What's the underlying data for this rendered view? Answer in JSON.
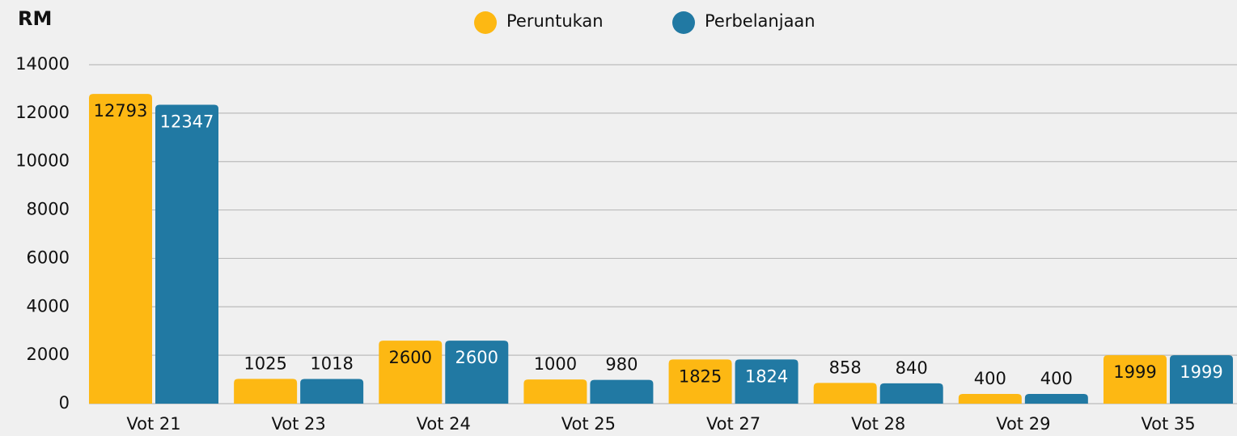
{
  "chart_data": {
    "type": "bar",
    "y_label": "RM",
    "categories": [
      "Vot 21",
      "Vot 23",
      "Vot 24",
      "Vot 25",
      "Vot 27",
      "Vot 28",
      "Vot 29",
      "Vot 35"
    ],
    "series": [
      {
        "name": "Peruntukan",
        "color": "#fdb813",
        "values": [
          12793,
          1025,
          2600,
          1000,
          1825,
          858,
          400,
          1999
        ]
      },
      {
        "name": "Perbelanjaan",
        "color": "#2179a3",
        "values": [
          12347,
          1018,
          2600,
          980,
          1824,
          840,
          400,
          1999
        ]
      }
    ],
    "ylim": [
      0,
      14000
    ],
    "yticks": [
      0,
      2000,
      4000,
      6000,
      8000,
      10000,
      12000,
      14000
    ],
    "grid": true,
    "legend": "top"
  }
}
